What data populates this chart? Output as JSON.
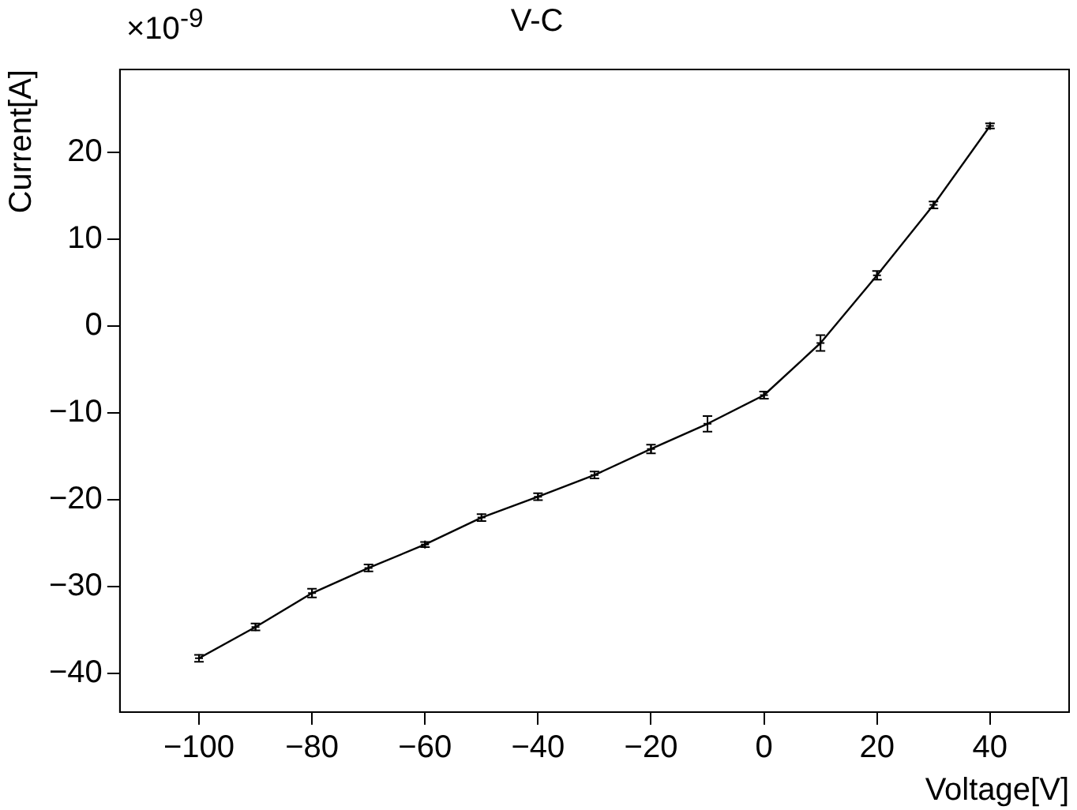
{
  "chart_data": {
    "type": "line",
    "title": "V-C",
    "xlabel": "Voltage[V]",
    "ylabel": "Current[A]",
    "annotations": [
      "×10$^{-9}$"
    ],
    "x": [
      -100,
      -90,
      -80,
      -70,
      -60,
      -50,
      -40,
      -30,
      -20,
      -10,
      0,
      10,
      20,
      30,
      40
    ],
    "series": [
      {
        "color": "#000000",
        "values": [
          -38.3,
          -34.7,
          -30.8,
          -27.9,
          -25.2,
          -22.1,
          -19.7,
          -17.2,
          -14.2,
          -11.3,
          -8.0,
          -2.0,
          5.8,
          13.9,
          23.0
        ],
        "errors": [
          0.4,
          0.4,
          0.5,
          0.4,
          0.3,
          0.4,
          0.4,
          0.4,
          0.5,
          0.9,
          0.4,
          0.9,
          0.5,
          0.4,
          0.3
        ]
      }
    ],
    "xlim": [
      -114,
      54
    ],
    "xticks": [
      -100,
      -80,
      -60,
      -40,
      -20,
      0,
      20,
      40
    ],
    "ylim": [
      -44.5,
      29.5
    ],
    "yticks": [
      -40,
      -30,
      -20,
      -10,
      0,
      10,
      20
    ],
    "grid": false,
    "legend": false,
    "marker": "cross",
    "line_style": "solid"
  }
}
